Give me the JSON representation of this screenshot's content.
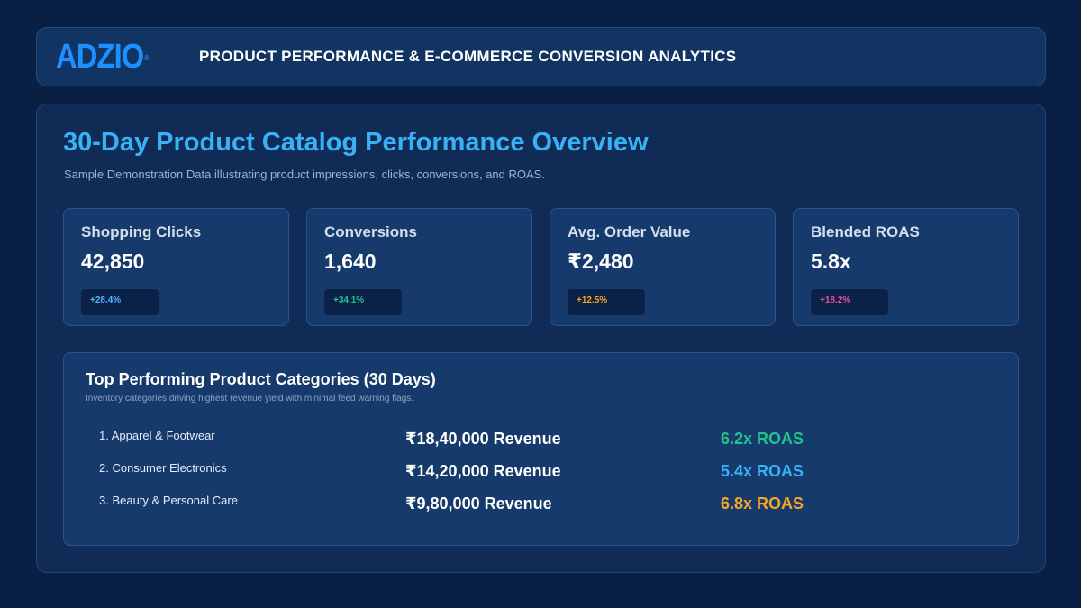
{
  "header": {
    "logo_text": "ADZIO",
    "logo_mark": "®",
    "title": "PRODUCT PERFORMANCE & E-COMMERCE CONVERSION ANALYTICS"
  },
  "main": {
    "title": "30-Day Product Catalog Performance Overview",
    "subtitle": "Sample Demonstration Data illustrating product impressions, clicks, conversions, and ROAS."
  },
  "kpis": [
    {
      "label": "Shopping Clicks",
      "value": "42,850",
      "change": "+28.4%",
      "color": "#4db8ff"
    },
    {
      "label": "Conversions",
      "value": "1,640",
      "change": "+34.1%",
      "color": "#22c38e"
    },
    {
      "label": "Avg. Order Value",
      "value": "₹2,480",
      "change": "+12.5%",
      "color": "#f5a623"
    },
    {
      "label": "Blended ROAS",
      "value": "5.8x",
      "change": "+18.2%",
      "color": "#e0529a"
    }
  ],
  "categories": {
    "title": "Top Performing Product Categories (30 Days)",
    "subtitle": "Inventory categories driving highest revenue yield with minimal feed warning flags.",
    "rows": [
      {
        "name": "1. Apparel & Footwear",
        "revenue": "₹18,40,000 Revenue",
        "roas": "6.2x ROAS",
        "color": "#22c38e"
      },
      {
        "name": "2. Consumer Electronics",
        "revenue": "₹14,20,000 Revenue",
        "roas": "5.4x ROAS",
        "color": "#38b2f5"
      },
      {
        "name": "3. Beauty & Personal Care",
        "revenue": "₹9,80,000 Revenue",
        "roas": "6.8x ROAS",
        "color": "#f5a623"
      }
    ]
  }
}
